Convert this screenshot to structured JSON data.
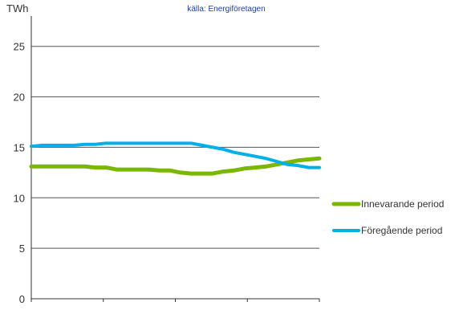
{
  "chart_data": {
    "type": "line",
    "title": "",
    "source": "källa: Energiföretagen",
    "ylabel": "TWh",
    "ylim": [
      0,
      28
    ],
    "yticks": [
      0,
      5,
      10,
      15,
      20,
      25
    ],
    "grid": true,
    "legend_position": "right",
    "series": [
      {
        "name": "Innevarande period",
        "color": "#7ab800",
        "values": [
          13.1,
          13.1,
          13.1,
          13.1,
          13.1,
          13.1,
          13.0,
          13.0,
          12.8,
          12.8,
          12.8,
          12.8,
          12.7,
          12.7,
          12.5,
          12.4,
          12.4,
          12.4,
          12.6,
          12.7,
          12.9,
          13.0,
          13.1,
          13.3,
          13.5,
          13.7,
          13.8,
          13.9
        ]
      },
      {
        "name": "Föregående period",
        "color": "#00b0e8",
        "values": [
          15.1,
          15.2,
          15.2,
          15.2,
          15.2,
          15.3,
          15.3,
          15.4,
          15.4,
          15.4,
          15.4,
          15.4,
          15.4,
          15.4,
          15.4,
          15.4,
          15.2,
          15.0,
          14.8,
          14.5,
          14.3,
          14.1,
          13.9,
          13.6,
          13.3,
          13.2,
          13.0,
          13.0
        ]
      }
    ]
  }
}
